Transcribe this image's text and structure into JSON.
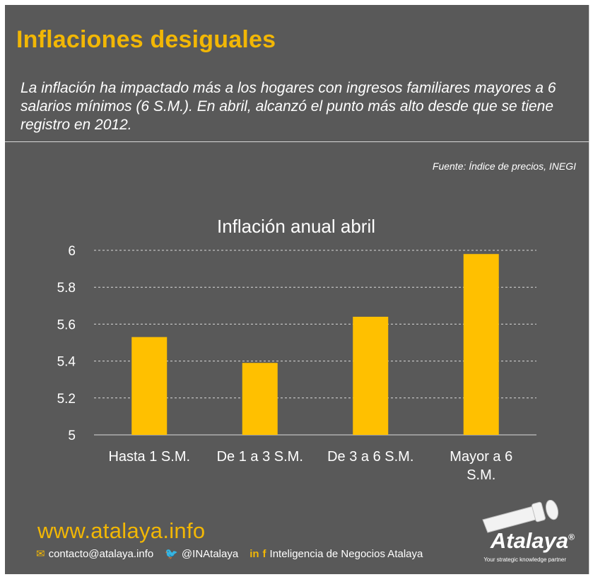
{
  "header": {
    "title": "Inflaciones desiguales",
    "subtitle": "La inflación ha impactado más a los hogares con ingresos familiares mayores a 6 salarios mínimos (6 S.M.). En abril, alcanzó el punto más alto desde que se tiene registro en 2012.",
    "source": "Fuente: Índice de precios, INEGI"
  },
  "chart_data": {
    "type": "bar",
    "title": "Inflación anual abril",
    "categories": [
      [
        "Hasta 1 S.M."
      ],
      [
        "De 1 a 3 S.M."
      ],
      [
        "De 3 a 6 S.M."
      ],
      [
        "Mayor a 6",
        "S.M."
      ]
    ],
    "values": [
      5.53,
      5.39,
      5.64,
      5.98
    ],
    "ylim": [
      5,
      6
    ],
    "yticks": [
      "5",
      "5.2",
      "5.4",
      "5.6",
      "5.8",
      "6"
    ],
    "grid": true,
    "bar_color": "#ffc000"
  },
  "footer": {
    "url": "www.atalaya.info",
    "email": "contacto@atalaya.info",
    "twitter": "@INAtalaya",
    "social_name": "Inteligencia de Negocios Atalaya",
    "accent_color": "#f2b705"
  },
  "logo": {
    "name": "Atalaya",
    "registered": "®",
    "tagline": "Your strategic knowledge partner"
  }
}
